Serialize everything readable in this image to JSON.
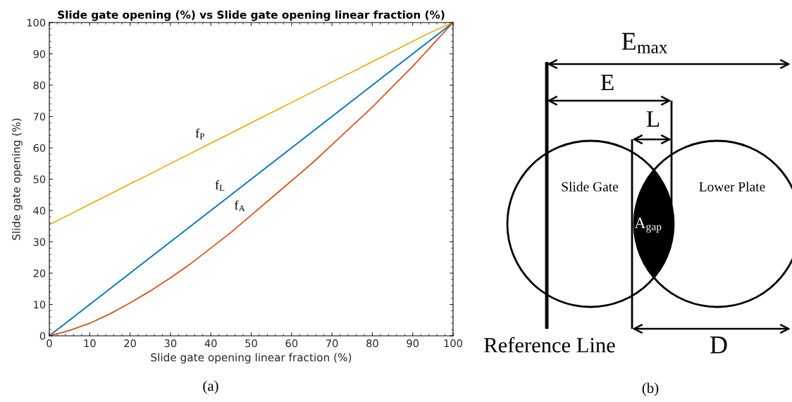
{
  "chart_data": [
    {
      "type": "line",
      "title": "Slide gate opening (%) vs Slide gate opening linear fraction (%)",
      "xlabel": "Slide gate opening linear fraction (%)",
      "ylabel": "Slide gate opening (%)",
      "x": [
        0,
        5,
        10,
        15,
        20,
        25,
        30,
        35,
        40,
        45,
        50,
        55,
        60,
        65,
        70,
        75,
        80,
        85,
        90,
        95,
        100
      ],
      "series": [
        {
          "name": "f$_{P}$",
          "color": "#edb120",
          "values": [
            35.5,
            38.7,
            42,
            45.2,
            48.5,
            51.7,
            55,
            58.2,
            61.5,
            64.7,
            68,
            71.2,
            74.5,
            77.7,
            81,
            84.2,
            87.5,
            90.7,
            94,
            97.2,
            100
          ]
        },
        {
          "name": "f$_{L}$",
          "color": "#0072bd",
          "values": [
            0,
            5,
            10,
            15,
            20,
            25,
            30,
            35,
            40,
            45,
            50,
            55,
            60,
            65,
            70,
            75,
            80,
            85,
            90,
            95,
            100
          ]
        },
        {
          "name": "f$_{A}$",
          "color": "#d95319",
          "values": [
            0,
            1.7,
            4,
            7,
            10.5,
            14.3,
            18.5,
            23,
            28,
            33,
            38.5,
            44,
            49.5,
            55,
            61,
            67,
            73,
            79.5,
            86,
            93,
            100
          ]
        }
      ],
      "annotations": [
        "(a)"
      ],
      "xlim": [
        0,
        100
      ],
      "ylim": [
        0,
        100
      ],
      "xticks": [
        0,
        10,
        20,
        30,
        40,
        50,
        60,
        70,
        80,
        90,
        100
      ],
      "yticks": [
        0,
        10,
        20,
        30,
        40,
        50,
        60,
        70,
        80,
        90,
        100
      ],
      "grid": false,
      "legend": false,
      "line_style": "solid",
      "marker": "none"
    },
    {
      "type": "other",
      "annotations": [
        "E$_{max}$",
        "E",
        "L",
        "Slide Gate",
        "Lower Plate",
        "A$_{gap}$",
        "Reference Line",
        "D",
        "(b)"
      ]
    }
  ]
}
